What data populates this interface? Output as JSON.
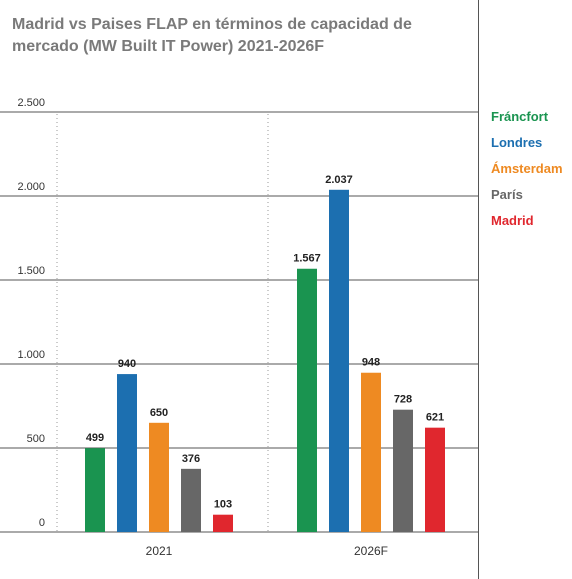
{
  "title": "Madrid vs Paises  FLAP en términos de capacidad de mercado (MW Built  IT Power)  2021-2026F",
  "chart_data": {
    "type": "bar",
    "title": "Madrid vs Paises  FLAP en términos de capacidad de mercado (MW Built  IT Power)  2021-2026F",
    "categories": [
      "2021",
      "2026F"
    ],
    "series": [
      {
        "name": "Fráncfort",
        "color": "#1a9450",
        "values": [
          499,
          1567
        ],
        "labels": [
          "499",
          "1.567"
        ]
      },
      {
        "name": "Londres",
        "color": "#1c6fb0",
        "values": [
          940,
          2037
        ],
        "labels": [
          "940",
          "2.037"
        ]
      },
      {
        "name": "Ámsterdam",
        "color": "#ee8a22",
        "values": [
          650,
          948
        ],
        "labels": [
          "650",
          "948"
        ]
      },
      {
        "name": "París",
        "color": "#676767",
        "values": [
          376,
          728
        ],
        "labels": [
          "376",
          "728"
        ]
      },
      {
        "name": "Madrid",
        "color": "#e0272e",
        "values": [
          103,
          621
        ],
        "labels": [
          "103",
          "621"
        ]
      }
    ],
    "y_ticks": [
      {
        "value": 0,
        "label": "0"
      },
      {
        "value": 500,
        "label": "500"
      },
      {
        "value": 1000,
        "label": "1.000"
      },
      {
        "value": 1500,
        "label": "1.500"
      },
      {
        "value": 2000,
        "label": "2.000"
      },
      {
        "value": 2500,
        "label": "2.500"
      }
    ],
    "ylim": [
      0,
      2500
    ],
    "xlabel": "",
    "ylabel": "",
    "grid": true,
    "legend_position": "right"
  }
}
